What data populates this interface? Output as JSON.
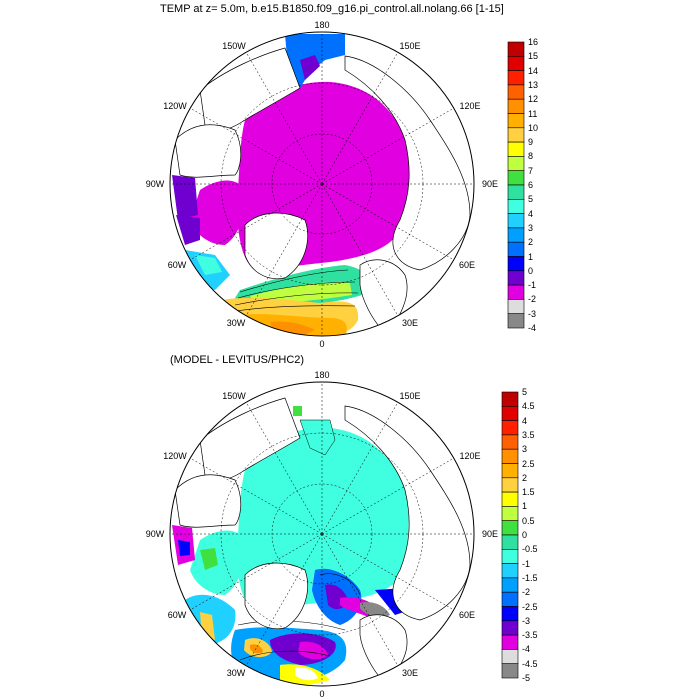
{
  "plot1": {
    "title": "TEMP at z=   5.0m, b.e15.B1850.f09_g16.pi_control.all.nolang.66 [1-15]",
    "lon_labels": [
      "180",
      "150E",
      "120E",
      "90E",
      "60E",
      "30E",
      "0",
      "30W",
      "60W",
      "90W",
      "120W",
      "150W"
    ],
    "colorbar": {
      "labels": [
        "16",
        "15",
        "14",
        "13",
        "12",
        "11",
        "10",
        "9",
        "8",
        "7",
        "6",
        "5",
        "4",
        "3",
        "2",
        "1",
        "0",
        "-1",
        "-2",
        "-3",
        "-4"
      ],
      "colors": [
        "#c00000",
        "#e00000",
        "#ff2000",
        "#ff6000",
        "#ff9000",
        "#ffb000",
        "#ffd040",
        "#ffff00",
        "#c0ff40",
        "#40e040",
        "#30e0a0",
        "#40ffe0",
        "#20d0ff",
        "#00a0ff",
        "#0070ff",
        "#0000ff",
        "#7000d0",
        "#e000e0",
        "#dddddd",
        "#888888"
      ]
    }
  },
  "plot2": {
    "title": "(MODEL - LEVITUS/PHC2)",
    "lon_labels": [
      "180",
      "150E",
      "120E",
      "90E",
      "60E",
      "30E",
      "0",
      "30W",
      "60W",
      "90W",
      "120W",
      "150W"
    ],
    "colorbar": {
      "labels": [
        "5",
        "4.5",
        "4",
        "3.5",
        "3",
        "2.5",
        "2",
        "1.5",
        "1",
        "0.5",
        "0",
        "-0.5",
        "-1",
        "-1.5",
        "-2",
        "-2.5",
        "-3",
        "-3.5",
        "-4",
        "-4.5",
        "-5"
      ],
      "colors": [
        "#c00000",
        "#e00000",
        "#ff2000",
        "#ff6000",
        "#ff9000",
        "#ffb000",
        "#ffd040",
        "#ffff00",
        "#c0ff40",
        "#40e040",
        "#30e0a0",
        "#40ffe0",
        "#20d0ff",
        "#00a0ff",
        "#0070ff",
        "#0000ff",
        "#7000d0",
        "#e000e0",
        "#dddddd",
        "#888888"
      ]
    }
  }
}
